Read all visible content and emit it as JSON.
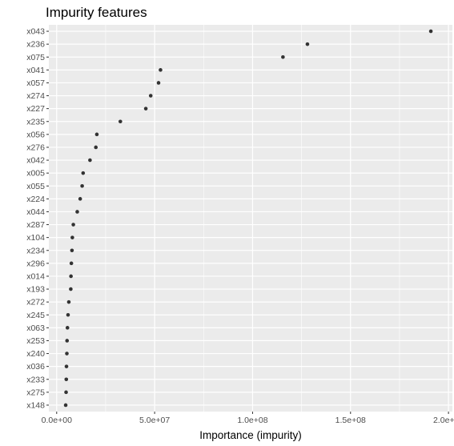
{
  "chart_data": {
    "type": "scatter",
    "title": "Impurity features",
    "xlabel": "Importance (impurity)",
    "ylabel": "",
    "xlim": [
      -4000000,
      202000000
    ],
    "x_ticks": [
      0,
      50000000,
      100000000,
      150000000,
      200000000
    ],
    "x_tick_labels": [
      "0.0e+00",
      "5.0e+07",
      "1.0e+08",
      "1.5e+08",
      "2.0e+08"
    ],
    "grid": true,
    "panel_background": "#EBEBEB",
    "grid_color": "#FFFFFF",
    "point_color": "#333333",
    "categories": [
      "x043",
      "x236",
      "x075",
      "x041",
      "x057",
      "x274",
      "x227",
      "x235",
      "x056",
      "x276",
      "x042",
      "x005",
      "x055",
      "x224",
      "x044",
      "x287",
      "x104",
      "x234",
      "x296",
      "x014",
      "x193",
      "x272",
      "x245",
      "x063",
      "x253",
      "x240",
      "x036",
      "x233",
      "x275",
      "x148"
    ],
    "values": [
      191000000,
      128000000,
      115500000,
      53000000,
      52000000,
      48000000,
      45500000,
      32500000,
      20500000,
      20000000,
      17000000,
      13500000,
      13000000,
      12000000,
      10500000,
      8500000,
      8000000,
      7800000,
      7500000,
      7300000,
      7200000,
      6200000,
      5800000,
      5500000,
      5300000,
      5200000,
      5000000,
      4900000,
      4800000,
      4600000
    ]
  }
}
